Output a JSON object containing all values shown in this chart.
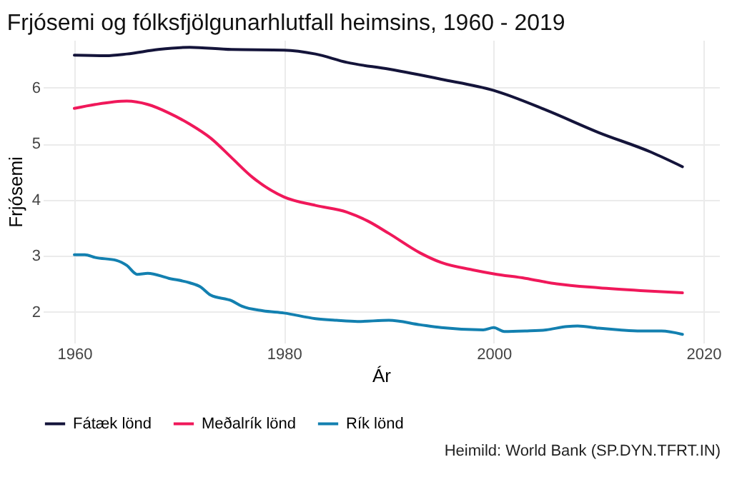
{
  "chart_data": {
    "type": "line",
    "title": "Frjósemi og fólksfjölgunarhlutfall heimsins, 1960 - 2019",
    "xlabel": "Ár",
    "ylabel": "Frjósemi",
    "xlim": [
      1957,
      2021.5
    ],
    "xticks": [
      1960,
      1980,
      2000,
      2020
    ],
    "ylim": [
      1.45,
      6.85
    ],
    "yticks": [
      2,
      3,
      4,
      5,
      6
    ],
    "grid": true,
    "legend": "bottom",
    "line_style": "solid",
    "marker": "none",
    "annotations": [
      "Heimild: World Bank (SP.DYN.TFRT.IN)"
    ],
    "series": [
      {
        "name": "Fátæk lönd",
        "color": "#14143a",
        "x": [
          1960,
          1963,
          1965,
          1968,
          1971,
          1975,
          1980,
          1983,
          1986,
          1990,
          1995,
          2000,
          2005,
          2010,
          2015,
          2018
        ],
        "values": [
          6.58,
          6.57,
          6.6,
          6.68,
          6.72,
          6.68,
          6.67,
          6.6,
          6.45,
          6.33,
          6.15,
          5.95,
          5.6,
          5.2,
          4.85,
          4.59
        ]
      },
      {
        "name": "Meðalrík lönd",
        "color": "#f0185a",
        "x": [
          1960,
          1962,
          1965,
          1967,
          1969,
          1971,
          1973,
          1975,
          1977,
          1980,
          1983,
          1986,
          1988,
          1990,
          1993,
          1995,
          1998,
          2000,
          2003,
          2006,
          2010,
          2014,
          2018
        ],
        "values": [
          5.63,
          5.7,
          5.76,
          5.7,
          5.55,
          5.35,
          5.1,
          4.75,
          4.4,
          4.05,
          3.9,
          3.78,
          3.62,
          3.4,
          3.05,
          2.88,
          2.75,
          2.68,
          2.6,
          2.5,
          2.43,
          2.38,
          2.34
        ]
      },
      {
        "name": "Rík lönd",
        "color": "#1380b0",
        "x": [
          1960,
          1961,
          1962,
          1964,
          1965,
          1966,
          1967,
          1969,
          1971,
          1972,
          1973,
          1975,
          1976,
          1978,
          1980,
          1983,
          1985,
          1987,
          1990,
          1993,
          1995,
          1999,
          2000,
          2001,
          2003,
          2005,
          2007,
          2008,
          2010,
          2012,
          2014,
          2016,
          2018
        ],
        "values": [
          3.02,
          3.02,
          2.97,
          2.92,
          2.83,
          2.67,
          2.69,
          2.6,
          2.52,
          2.45,
          2.3,
          2.2,
          2.1,
          2.02,
          1.98,
          1.88,
          1.85,
          1.83,
          1.85,
          1.77,
          1.72,
          1.68,
          1.72,
          1.65,
          1.66,
          1.68,
          1.74,
          1.75,
          1.71,
          1.68,
          1.66,
          1.66,
          1.6
        ]
      }
    ]
  }
}
